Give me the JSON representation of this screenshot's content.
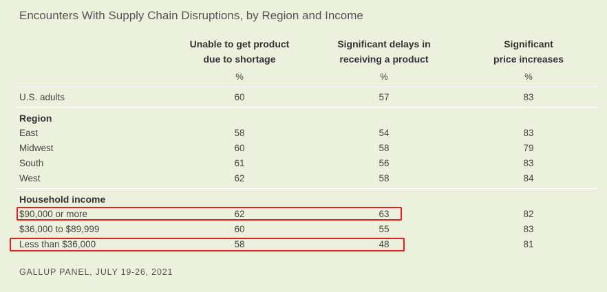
{
  "title": "Encounters With Supply Chain Disruptions, by Region and Income",
  "columns": [
    {
      "line1": "Unable to get product",
      "line2": "due to shortage",
      "unit": "%"
    },
    {
      "line1": "Significant delays in",
      "line2": "receiving a product",
      "unit": "%"
    },
    {
      "line1": "Significant",
      "line2": "price increases",
      "unit": "%"
    }
  ],
  "sections": {
    "region": "Region",
    "income": "Household income"
  },
  "rows": {
    "us_adults": {
      "label": "U.S. adults",
      "values": [
        "60",
        "57",
        "83"
      ]
    },
    "east": {
      "label": "East",
      "values": [
        "58",
        "54",
        "83"
      ]
    },
    "midwest": {
      "label": "Midwest",
      "values": [
        "60",
        "58",
        "79"
      ]
    },
    "south": {
      "label": "South",
      "values": [
        "61",
        "56",
        "83"
      ]
    },
    "west": {
      "label": "West",
      "values": [
        "62",
        "58",
        "84"
      ]
    },
    "inc_high": {
      "label": "$90,000 or more",
      "values": [
        "62",
        "63",
        "82"
      ]
    },
    "inc_mid": {
      "label": "$36,000 to $89,999",
      "values": [
        "60",
        "55",
        "83"
      ]
    },
    "inc_low": {
      "label": "Less than $36,000",
      "values": [
        "58",
        "48",
        "81"
      ]
    }
  },
  "footer": "GALLUP PANEL, JULY 19-26, 2021",
  "colors": {
    "background": "#ecf1de",
    "highlight": "#e02020"
  },
  "chart_data": {
    "type": "table",
    "title": "Encounters With Supply Chain Disruptions, by Region and Income",
    "columns": [
      "Unable to get product due to shortage",
      "Significant delays in receiving a product",
      "Significant price increases"
    ],
    "unit": "%",
    "rows": [
      {
        "group": "",
        "label": "U.S. adults",
        "values": [
          60,
          57,
          83
        ]
      },
      {
        "group": "Region",
        "label": "East",
        "values": [
          58,
          54,
          83
        ]
      },
      {
        "group": "Region",
        "label": "Midwest",
        "values": [
          60,
          58,
          79
        ]
      },
      {
        "group": "Region",
        "label": "South",
        "values": [
          61,
          56,
          83
        ]
      },
      {
        "group": "Region",
        "label": "West",
        "values": [
          62,
          58,
          84
        ]
      },
      {
        "group": "Household income",
        "label": "$90,000 or more",
        "values": [
          62,
          63,
          82
        ]
      },
      {
        "group": "Household income",
        "label": "$36,000 to $89,999",
        "values": [
          60,
          55,
          83
        ]
      },
      {
        "group": "Household income",
        "label": "Less than $36,000",
        "values": [
          58,
          48,
          81
        ]
      }
    ],
    "annotations": [
      "red box around $90,000 or more (first two columns)",
      "red box around Less than $36,000 (first two columns)"
    ],
    "source": "GALLUP PANEL, JULY 19-26, 2021"
  }
}
